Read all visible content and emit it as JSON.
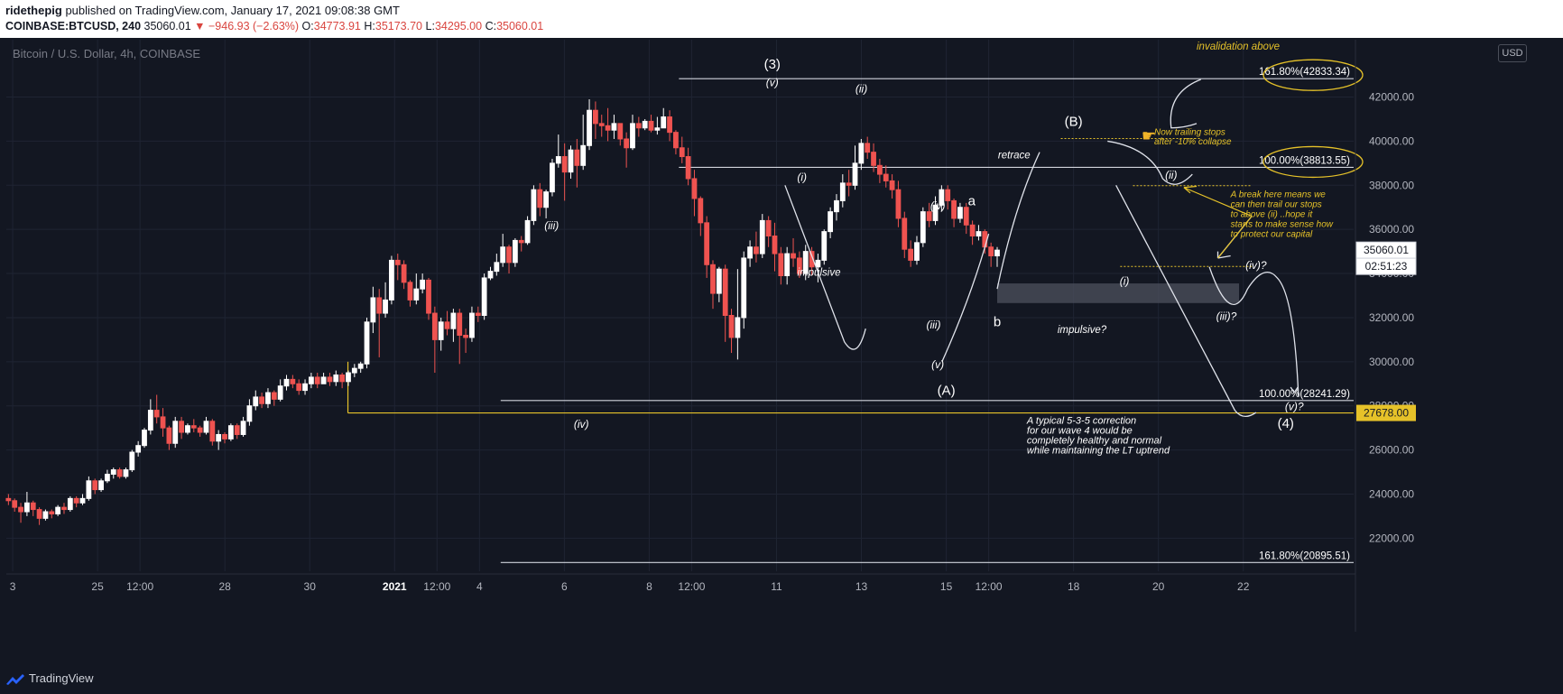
{
  "header": {
    "author": "ridethepig",
    "published": " published on TradingView.com, January 17, 2021 09:08:38 GMT",
    "symbol": "COINBASE:BTCUSD, 240",
    "last": "35060.01",
    "change": "▼ −946.93 (−2.63%)",
    "o_label": "O:",
    "o": "34773.91",
    "h_label": "H:",
    "h": "35173.70",
    "l_label": "L:",
    "l": "34295.00",
    "c_label": "C:",
    "c": "35060.01"
  },
  "footer": {
    "brand": "TradingView"
  },
  "colors": {
    "up": "#ffffff",
    "down": "#ef5350",
    "yellow": "#e6c229",
    "bg": "#131722",
    "grid": "#1f2433",
    "text": "#d1d4dc"
  },
  "chart_data": {
    "type": "candlestick",
    "title": "Bitcoin / U.S. Dollar, 4h, COINBASE",
    "currency": "USD",
    "y_ticks": [
      "22000.00",
      "24000.00",
      "26000.00",
      "28000.00",
      "30000.00",
      "32000.00",
      "34000.00",
      "36000.00",
      "38000.00",
      "40000.00",
      "42000.00"
    ],
    "ylim": [
      20500,
      44600
    ],
    "x_ticks": [
      "3",
      "25",
      "12:00",
      "28",
      "30",
      "2021",
      "12:00",
      "4",
      "6",
      "8",
      "12:00",
      "11",
      "13",
      "15",
      "12:00",
      "18",
      "20",
      "22"
    ],
    "x_tick_days": [
      0,
      2,
      3,
      5,
      7,
      9,
      10,
      11,
      13,
      15,
      16,
      18,
      20,
      22,
      23,
      25,
      27,
      29
    ],
    "candles_window_days": [
      -0.1,
      23.2
    ],
    "last_price_label": "35060.01",
    "countdown_label": "02:51:23",
    "support_price_label": "27678.00",
    "candles": [
      [
        23800,
        23700,
        24000,
        23500
      ],
      [
        23700,
        23400,
        23800,
        23200
      ],
      [
        23400,
        23200,
        23600,
        22700
      ],
      [
        23200,
        23600,
        24100,
        23000
      ],
      [
        23600,
        23300,
        23700,
        23000
      ],
      [
        23300,
        22900,
        23400,
        22600
      ],
      [
        22900,
        23200,
        23300,
        22800
      ],
      [
        23200,
        23100,
        23300,
        22900
      ],
      [
        23100,
        23400,
        23500,
        23000
      ],
      [
        23400,
        23300,
        23600,
        23100
      ],
      [
        23300,
        23800,
        23900,
        23200
      ],
      [
        23800,
        23600,
        23900,
        23400
      ],
      [
        23600,
        23800,
        24000,
        23500
      ],
      [
        23800,
        24600,
        24800,
        23700
      ],
      [
        24600,
        24200,
        24700,
        24000
      ],
      [
        24200,
        24600,
        24700,
        24100
      ],
      [
        24600,
        24900,
        25100,
        24500
      ],
      [
        24900,
        25100,
        25200,
        24700
      ],
      [
        25100,
        24800,
        25200,
        24700
      ],
      [
        24800,
        25100,
        25200,
        24700
      ],
      [
        25100,
        25900,
        26000,
        25000
      ],
      [
        25900,
        26200,
        26400,
        25700
      ],
      [
        26200,
        26900,
        27000,
        26100
      ],
      [
        26900,
        27800,
        28300,
        26700
      ],
      [
        27800,
        27500,
        28500,
        27200
      ],
      [
        27500,
        27000,
        27900,
        26600
      ],
      [
        27000,
        26300,
        27100,
        26000
      ],
      [
        26300,
        27300,
        27500,
        26100
      ],
      [
        27300,
        26800,
        27500,
        26500
      ],
      [
        26800,
        27100,
        27200,
        26700
      ],
      [
        27100,
        27000,
        27400,
        26800
      ],
      [
        27000,
        26800,
        27100,
        26600
      ],
      [
        26800,
        27300,
        27500,
        26700
      ],
      [
        27300,
        26400,
        27400,
        26200
      ],
      [
        26400,
        26700,
        26900,
        26000
      ],
      [
        26700,
        26500,
        26800,
        26300
      ],
      [
        26500,
        27100,
        27200,
        26400
      ],
      [
        27100,
        26700,
        27200,
        26500
      ],
      [
        26700,
        27300,
        27500,
        26600
      ],
      [
        27300,
        28000,
        28300,
        27100
      ],
      [
        28000,
        28400,
        28700,
        27800
      ],
      [
        28400,
        28100,
        28600,
        27900
      ],
      [
        28100,
        28600,
        28800,
        27900
      ],
      [
        28600,
        28300,
        28700,
        28000
      ],
      [
        28300,
        28900,
        29200,
        28200
      ],
      [
        28900,
        29200,
        29400,
        28700
      ],
      [
        29200,
        29000,
        29400,
        28800
      ],
      [
        29000,
        28700,
        29200,
        28500
      ],
      [
        28700,
        29000,
        29200,
        28500
      ],
      [
        29000,
        29300,
        29500,
        28800
      ],
      [
        29300,
        29000,
        29500,
        28800
      ],
      [
        29000,
        29300,
        29500,
        29000
      ],
      [
        29300,
        29100,
        29500,
        28900
      ],
      [
        29100,
        29400,
        29600,
        28900
      ],
      [
        29400,
        29100,
        29500,
        28800
      ],
      [
        29100,
        29500,
        29600,
        28900
      ],
      [
        29500,
        29700,
        29900,
        29300
      ],
      [
        29700,
        29900,
        30000,
        29500
      ],
      [
        29900,
        31800,
        32000,
        29700
      ],
      [
        31800,
        32900,
        33400,
        31300
      ],
      [
        32900,
        32200,
        33300,
        30200
      ],
      [
        32200,
        32800,
        33600,
        32000
      ],
      [
        32800,
        34600,
        34800,
        32600
      ],
      [
        34600,
        34400,
        34900,
        33700
      ],
      [
        34400,
        33600,
        34600,
        33300
      ],
      [
        33600,
        32800,
        33700,
        32500
      ],
      [
        32800,
        33300,
        34000,
        32600
      ],
      [
        33300,
        33700,
        34000,
        33100
      ],
      [
        33700,
        32200,
        33800,
        31900
      ],
      [
        32200,
        31000,
        32500,
        29500
      ],
      [
        31000,
        31800,
        32000,
        30500
      ],
      [
        31800,
        31500,
        32300,
        31200
      ],
      [
        31500,
        32200,
        32400,
        30900
      ],
      [
        32200,
        31200,
        32400,
        29900
      ],
      [
        31200,
        31100,
        31500,
        30400
      ],
      [
        31100,
        32200,
        32500,
        30900
      ],
      [
        32200,
        32100,
        32500,
        31800
      ],
      [
        32100,
        33800,
        34000,
        31900
      ],
      [
        33800,
        34100,
        34300,
        33700
      ],
      [
        34100,
        34500,
        34900,
        33900
      ],
      [
        34500,
        35200,
        35800,
        34300
      ],
      [
        35200,
        34500,
        35300,
        34000
      ],
      [
        34500,
        35500,
        35600,
        34300
      ],
      [
        35500,
        35400,
        35700,
        35000
      ],
      [
        35400,
        36400,
        36600,
        35300
      ],
      [
        36400,
        37800,
        38000,
        36200
      ],
      [
        37800,
        37000,
        38100,
        36600
      ],
      [
        37000,
        37700,
        37800,
        36500
      ],
      [
        37700,
        39000,
        39200,
        37500
      ],
      [
        39000,
        39300,
        40300,
        38800
      ],
      [
        39300,
        38600,
        39900,
        37300
      ],
      [
        38600,
        39600,
        39800,
        38300
      ],
      [
        39600,
        38900,
        40100,
        37900
      ],
      [
        38900,
        39800,
        41200,
        38700
      ],
      [
        39800,
        41400,
        41900,
        39600
      ],
      [
        41400,
        40800,
        41800,
        40100
      ],
      [
        40800,
        40700,
        41200,
        40200
      ],
      [
        40700,
        40500,
        41500,
        40000
      ],
      [
        40500,
        40800,
        41200,
        40100
      ],
      [
        40800,
        40100,
        40800,
        39800
      ],
      [
        40100,
        39700,
        40400,
        38800
      ],
      [
        39700,
        40800,
        41200,
        39600
      ],
      [
        40800,
        40600,
        41100,
        40200
      ],
      [
        40600,
        40900,
        41000,
        40500
      ],
      [
        40900,
        40500,
        41200,
        40400
      ],
      [
        40500,
        40600,
        41100,
        40300
      ],
      [
        40600,
        41100,
        41500,
        40600
      ],
      [
        41100,
        40400,
        41400,
        40000
      ],
      [
        40400,
        39700,
        40500,
        39400
      ],
      [
        39700,
        39300,
        40200,
        39000
      ],
      [
        39300,
        38300,
        39700,
        38000
      ],
      [
        38300,
        37400,
        38700,
        36600
      ],
      [
        37400,
        36300,
        37500,
        35700
      ],
      [
        36300,
        34400,
        36600,
        33800
      ],
      [
        34400,
        33100,
        34600,
        32400
      ],
      [
        33100,
        34200,
        34300,
        32700
      ],
      [
        34200,
        32100,
        34400,
        30900
      ],
      [
        32100,
        31100,
        32400,
        30400
      ],
      [
        31100,
        32000,
        34200,
        30100
      ],
      [
        32000,
        34700,
        35000,
        31500
      ],
      [
        34700,
        35200,
        35500,
        34300
      ],
      [
        35200,
        34900,
        35900,
        34500
      ],
      [
        34900,
        36400,
        36700,
        34700
      ],
      [
        36400,
        35700,
        36600,
        35200
      ],
      [
        35700,
        34900,
        36300,
        34100
      ],
      [
        34900,
        33900,
        35200,
        33500
      ],
      [
        33900,
        34900,
        35200,
        33500
      ],
      [
        34900,
        34700,
        35600,
        34300
      ],
      [
        34700,
        34000,
        35000,
        33800
      ],
      [
        34000,
        35000,
        35300,
        33700
      ],
      [
        35000,
        34300,
        35200,
        33900
      ],
      [
        34300,
        34600,
        34900,
        33600
      ],
      [
        34600,
        35900,
        36000,
        34400
      ],
      [
        35900,
        36800,
        37000,
        35600
      ],
      [
        36800,
        37300,
        37600,
        36400
      ],
      [
        37300,
        38100,
        38500,
        37000
      ],
      [
        38100,
        38000,
        38700,
        37500
      ],
      [
        38000,
        39000,
        39800,
        37800
      ],
      [
        39000,
        39900,
        40100,
        38700
      ],
      [
        39900,
        39500,
        40200,
        39200
      ],
      [
        39500,
        38900,
        39900,
        38600
      ],
      [
        38900,
        38500,
        39200,
        38100
      ],
      [
        38500,
        38200,
        38900,
        37900
      ],
      [
        38200,
        37800,
        38500,
        37400
      ],
      [
        37800,
        36500,
        38200,
        36100
      ],
      [
        36500,
        35100,
        36800,
        34700
      ],
      [
        35100,
        34600,
        35500,
        34300
      ],
      [
        34600,
        35400,
        35700,
        34400
      ],
      [
        35400,
        36800,
        37000,
        35200
      ],
      [
        36800,
        36400,
        37200,
        36100
      ],
      [
        36400,
        37100,
        37500,
        36200
      ],
      [
        37100,
        37800,
        38000,
        36800
      ],
      [
        37800,
        37300,
        38000,
        36900
      ],
      [
        37300,
        36500,
        37400,
        36100
      ],
      [
        36500,
        37000,
        37200,
        36300
      ],
      [
        37000,
        36200,
        37200,
        35800
      ],
      [
        36200,
        35700,
        36400,
        35300
      ],
      [
        35700,
        35900,
        36200,
        35500
      ],
      [
        35900,
        35200,
        36000,
        34900
      ],
      [
        35200,
        34800,
        35400,
        34300
      ],
      [
        34800,
        35060,
        35200,
        34300
      ]
    ],
    "levels": [
      {
        "label": "161.80%(42833.34)",
        "price": 42833.34,
        "from_day": 15.7
      },
      {
        "label": "100.00%(38813.55)",
        "price": 38813.55,
        "from_day": 15.7
      },
      {
        "label": "100.00%(28241.29)",
        "price": 28241.29,
        "from_day": 11.5
      },
      {
        "label": "161.80%(20895.51)",
        "price": 20895.51,
        "from_day": 11.5
      },
      {
        "label": "27678.00",
        "price": 27678,
        "from_day": 7.9,
        "color": "yellow"
      }
    ],
    "wave_labels": [
      {
        "text": "(3)",
        "day": 17.9,
        "price": 43300,
        "style": "big"
      },
      {
        "text": "(v)",
        "day": 17.9,
        "price": 42500
      },
      {
        "text": "(ii)",
        "day": 20.0,
        "price": 42200
      },
      {
        "text": "(i)",
        "day": 18.6,
        "price": 38200
      },
      {
        "text": "(iii)",
        "day": 12.7,
        "price": 36000
      },
      {
        "text": "(iv)",
        "day": 13.4,
        "price": 27000
      },
      {
        "text": "(iv)",
        "day": 21.8,
        "price": 36900
      },
      {
        "text": "a",
        "day": 22.6,
        "price": 37100,
        "style": "big"
      },
      {
        "text": "(iii)",
        "day": 21.7,
        "price": 31500
      },
      {
        "text": "(v)",
        "day": 21.8,
        "price": 29700
      },
      {
        "text": "b",
        "day": 23.2,
        "price": 31600,
        "style": "big"
      },
      {
        "text": "(A)",
        "day": 22.0,
        "price": 28500,
        "style": "big"
      },
      {
        "text": "(B)",
        "day": 25.0,
        "price": 40700,
        "style": "big"
      },
      {
        "text": "(ii)",
        "day": 27.3,
        "price": 38300
      },
      {
        "text": "(i)",
        "day": 26.2,
        "price": 33500
      },
      {
        "text": "(iv)?",
        "day": 29.3,
        "price": 34200
      },
      {
        "text": "(iii)?",
        "day": 28.6,
        "price": 31900
      },
      {
        "text": "(v)?",
        "day": 30.2,
        "price": 27800
      },
      {
        "text": "(4)",
        "day": 30.0,
        "price": 27000,
        "style": "big"
      }
    ],
    "notes": {
      "invalidation": "invalidation above",
      "trailing1": "Now trailing stops",
      "trailing2": "after -10% collapse",
      "break": [
        "A break here means we",
        "can then trail our stops",
        "to above (ii) ..hope it",
        "starts to make sense how",
        "to protect our capital"
      ],
      "correction": [
        "A typical 5-3-5 correction",
        "for our wave 4 would be",
        "completely healthy and normal",
        "while maintaining the LT uptrend"
      ],
      "impulsive": "impulsive",
      "impulsive_q": "impulsive?",
      "retrace": "retrace"
    }
  }
}
